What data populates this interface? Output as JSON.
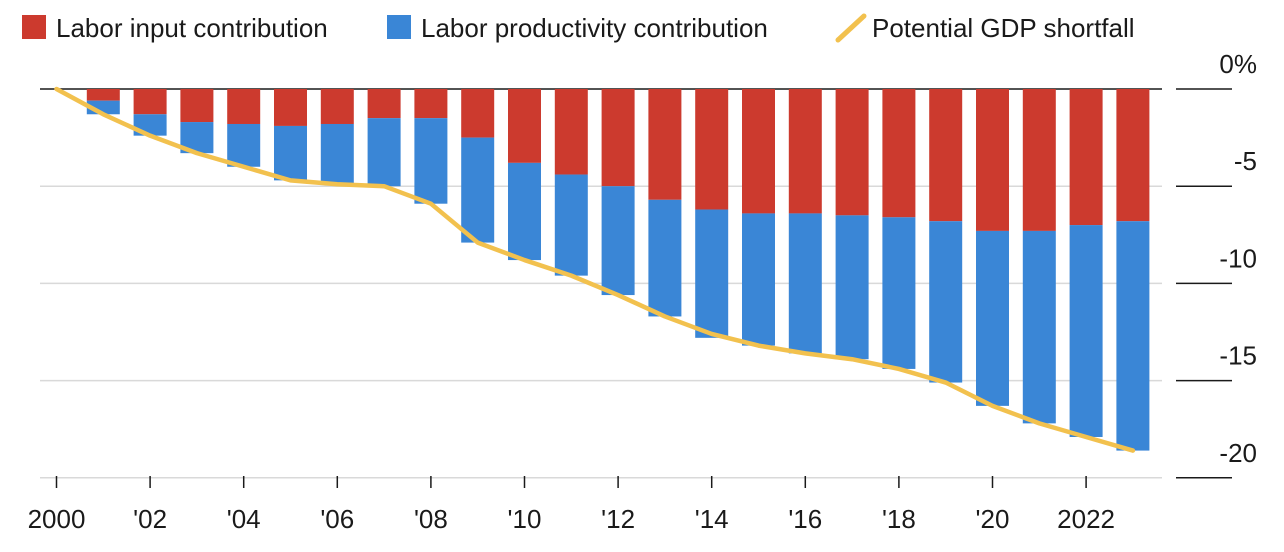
{
  "chart_data": {
    "type": "bar",
    "stacked": true,
    "x": [
      2001,
      2002,
      2003,
      2004,
      2005,
      2006,
      2007,
      2008,
      2009,
      2010,
      2011,
      2012,
      2013,
      2014,
      2015,
      2016,
      2017,
      2018,
      2019,
      2020,
      2021,
      2022,
      2023
    ],
    "series": [
      {
        "name": "Labor input contribution",
        "type": "bar",
        "color": "#cc3a2e",
        "values": [
          -0.6,
          -1.3,
          -1.7,
          -1.8,
          -1.9,
          -1.8,
          -1.5,
          -1.5,
          -2.5,
          -3.8,
          -4.4,
          -5.0,
          -5.7,
          -6.2,
          -6.4,
          -6.4,
          -6.5,
          -6.6,
          -6.8,
          -7.3,
          -7.3,
          -7.0,
          -6.8
        ]
      },
      {
        "name": "Labor productivity contribution",
        "type": "bar",
        "color": "#3a86d6",
        "values": [
          -0.7,
          -1.1,
          -1.6,
          -2.2,
          -2.8,
          -3.1,
          -3.5,
          -4.4,
          -5.4,
          -5.0,
          -5.2,
          -5.6,
          -6.0,
          -6.6,
          -6.8,
          -7.2,
          -7.4,
          -7.8,
          -8.3,
          -9.0,
          -9.9,
          -10.9,
          -11.8
        ]
      },
      {
        "name": "Potential GDP shortfall",
        "type": "line",
        "color": "#f2c14e",
        "x": [
          2000,
          2001,
          2002,
          2003,
          2004,
          2005,
          2006,
          2007,
          2008,
          2009,
          2010,
          2011,
          2012,
          2013,
          2014,
          2015,
          2016,
          2017,
          2018,
          2019,
          2020,
          2021,
          2022,
          2023
        ],
        "values": [
          0,
          -1.3,
          -2.4,
          -3.3,
          -4.0,
          -4.7,
          -4.9,
          -5.0,
          -5.9,
          -7.9,
          -8.8,
          -9.6,
          -10.6,
          -11.7,
          -12.6,
          -13.2,
          -13.6,
          -13.9,
          -14.4,
          -15.1,
          -16.3,
          -17.2,
          -17.9,
          -18.6
        ]
      }
    ],
    "legend_position": "top",
    "xlabel": "",
    "ylabel": "",
    "ylim": [
      -20,
      0
    ],
    "xlim": [
      2000,
      2023
    ],
    "x_tick_labels": [
      {
        "x": 2000,
        "label": "2000"
      },
      {
        "x": 2002,
        "label": "'02"
      },
      {
        "x": 2004,
        "label": "'04"
      },
      {
        "x": 2006,
        "label": "'06"
      },
      {
        "x": 2008,
        "label": "'08"
      },
      {
        "x": 2010,
        "label": "'10"
      },
      {
        "x": 2012,
        "label": "'12"
      },
      {
        "x": 2014,
        "label": "'14"
      },
      {
        "x": 2016,
        "label": "'16"
      },
      {
        "x": 2018,
        "label": "'18"
      },
      {
        "x": 2020,
        "label": "'20"
      },
      {
        "x": 2022,
        "label": "2022"
      }
    ],
    "y_tick_labels": [
      {
        "y": 0,
        "label": "0%"
      },
      {
        "y": -5,
        "label": "-5"
      },
      {
        "y": -10,
        "label": "-10"
      },
      {
        "y": -15,
        "label": "-15"
      },
      {
        "y": -20,
        "label": "-20"
      }
    ],
    "grid": true
  }
}
